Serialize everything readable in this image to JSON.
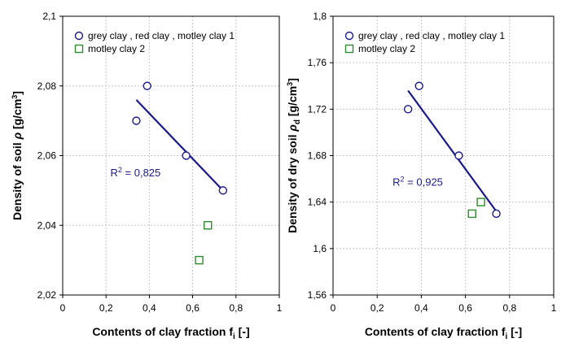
{
  "chart_data": [
    {
      "type": "scatter",
      "xlabel": {
        "text": "Contents of clay fraction f",
        "sub": "i",
        "tail": " [-]"
      },
      "ylabel": {
        "text": "Density of soil  ",
        "sym": "ρ",
        "symsub": "",
        "tail": " [g/cm",
        "sup": "3",
        "end": "]"
      },
      "xlim": [
        0,
        1
      ],
      "ylim": [
        2.02,
        2.1
      ],
      "xticks": [
        0,
        0.2,
        0.4,
        0.6,
        0.8,
        1
      ],
      "xtick_labels": [
        "0",
        "0,2",
        "0,4",
        "0,6",
        "0,8",
        "1"
      ],
      "yticks": [
        2.02,
        2.04,
        2.06,
        2.08,
        2.1
      ],
      "ytick_labels": [
        "2,02",
        "2,04",
        "2,06",
        "2,08",
        "2,1"
      ],
      "grid": true,
      "legend_position": "top",
      "series": [
        {
          "name": "grey  clay , red clay , motley  clay  1",
          "marker": "circle",
          "color": "#1a1a8c",
          "x": [
            0.34,
            0.39,
            0.57,
            0.74
          ],
          "y": [
            2.07,
            2.08,
            2.06,
            2.05
          ]
        },
        {
          "name": "motley  clay  2",
          "marker": "square",
          "color": "#2e8b2e",
          "x": [
            0.63,
            0.67
          ],
          "y": [
            2.03,
            2.04
          ]
        }
      ],
      "trendline": {
        "color": "#1a1a8c",
        "x": [
          0.34,
          0.74
        ],
        "y": [
          2.076,
          2.05
        ]
      },
      "annotation": {
        "text": "R",
        "sup": "2",
        "tail": " = 0,825",
        "x": 0.22,
        "y": 2.054
      }
    },
    {
      "type": "scatter",
      "xlabel": {
        "text": "Contents of clay fraction f",
        "sub": "i",
        "tail": " [-]"
      },
      "ylabel": {
        "text": "Density of dry soil  ",
        "sym": "ρ",
        "symsub": "d",
        "tail": " [g/cm",
        "sup": "3",
        "end": "]"
      },
      "xlim": [
        0,
        1
      ],
      "ylim": [
        1.56,
        1.8
      ],
      "xticks": [
        0,
        0.2,
        0.4,
        0.6,
        0.8,
        1
      ],
      "xtick_labels": [
        "0",
        "0,2",
        "0,4",
        "0,6",
        "0,8",
        "1"
      ],
      "yticks": [
        1.56,
        1.6,
        1.64,
        1.68,
        1.72,
        1.76,
        1.8
      ],
      "ytick_labels": [
        "1,56",
        "1,6",
        "1,64",
        "1,68",
        "1,72",
        "1,76",
        "1,8"
      ],
      "grid": true,
      "legend_position": "top",
      "series": [
        {
          "name": "grey  clay , red clay , motley  clay  1",
          "marker": "circle",
          "color": "#1a1a8c",
          "x": [
            0.34,
            0.39,
            0.57,
            0.74
          ],
          "y": [
            1.72,
            1.74,
            1.68,
            1.63
          ]
        },
        {
          "name": "motley  clay  2",
          "marker": "square",
          "color": "#2e8b2e",
          "x": [
            0.63,
            0.67
          ],
          "y": [
            1.63,
            1.64
          ]
        }
      ],
      "trendline": {
        "color": "#1a1a8c",
        "x": [
          0.34,
          0.74
        ],
        "y": [
          1.736,
          1.632
        ]
      },
      "annotation": {
        "text": "R",
        "sup": "2",
        "tail": " = 0,925",
        "x": 0.27,
        "y": 1.654
      }
    }
  ]
}
